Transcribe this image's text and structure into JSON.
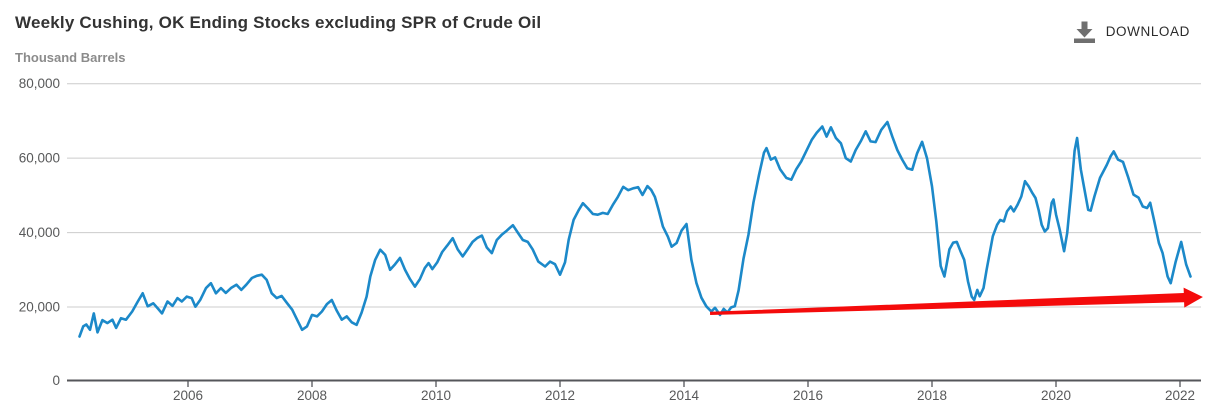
{
  "header": {
    "title": "Weekly Cushing, OK Ending Stocks excluding SPR of Crude Oil",
    "download_label": "DOWNLOAD"
  },
  "colors": {
    "series_line": "#1c89c9",
    "annotation_arrow": "#f40b0b",
    "gridline": "#cccccc",
    "axis_line": "#55565a",
    "axis_text": "#58595a",
    "title_text": "#333333",
    "units_text": "#8b8b8b",
    "download_icon": "#6f6f6f"
  },
  "chart_data": {
    "type": "line",
    "title": "Weekly Cushing, OK Ending Stocks excluding SPR of Crude Oil",
    "xlabel": "",
    "ylabel": "Thousand Barrels",
    "grid": true,
    "legend": false,
    "x_axis": {
      "min": 2004.05,
      "max": 2022.35,
      "ticks": [
        2006,
        2008,
        2010,
        2012,
        2014,
        2016,
        2018,
        2020,
        2022
      ]
    },
    "y_axis": {
      "min": 0,
      "max": 80000,
      "ticks": [
        0,
        20000,
        40000,
        60000,
        80000
      ],
      "tick_labels": [
        "0",
        "20,000",
        "40,000",
        "60,000",
        "80,000"
      ]
    },
    "annotation_arrow": {
      "from": [
        2014.42,
        18300
      ],
      "to": [
        2022.37,
        22700
      ]
    },
    "series": [
      {
        "name": "Weekly Cushing, OK Ending Stocks excluding SPR of Crude Oil (Thousand Barrels)",
        "points": [
          [
            2004.25,
            12100
          ],
          [
            2004.31,
            14800
          ],
          [
            2004.36,
            15300
          ],
          [
            2004.42,
            13900
          ],
          [
            2004.48,
            18300
          ],
          [
            2004.54,
            13200
          ],
          [
            2004.62,
            16500
          ],
          [
            2004.7,
            15700
          ],
          [
            2004.78,
            16600
          ],
          [
            2004.84,
            14400
          ],
          [
            2004.92,
            17000
          ],
          [
            2005.0,
            16600
          ],
          [
            2005.1,
            18800
          ],
          [
            2005.19,
            21500
          ],
          [
            2005.27,
            23700
          ],
          [
            2005.35,
            20200
          ],
          [
            2005.44,
            21000
          ],
          [
            2005.52,
            19500
          ],
          [
            2005.58,
            18300
          ],
          [
            2005.67,
            21500
          ],
          [
            2005.75,
            20300
          ],
          [
            2005.83,
            22400
          ],
          [
            2005.9,
            21500
          ],
          [
            2005.98,
            22800
          ],
          [
            2006.06,
            22400
          ],
          [
            2006.12,
            20100
          ],
          [
            2006.2,
            22000
          ],
          [
            2006.29,
            25100
          ],
          [
            2006.37,
            26400
          ],
          [
            2006.45,
            23700
          ],
          [
            2006.53,
            25100
          ],
          [
            2006.61,
            23800
          ],
          [
            2006.7,
            25200
          ],
          [
            2006.78,
            26000
          ],
          [
            2006.86,
            24600
          ],
          [
            2006.94,
            26000
          ],
          [
            2007.03,
            27800
          ],
          [
            2007.11,
            28400
          ],
          [
            2007.19,
            28700
          ],
          [
            2007.27,
            27300
          ],
          [
            2007.35,
            23700
          ],
          [
            2007.43,
            22400
          ],
          [
            2007.51,
            23000
          ],
          [
            2007.6,
            21000
          ],
          [
            2007.68,
            19300
          ],
          [
            2007.76,
            16600
          ],
          [
            2007.84,
            13900
          ],
          [
            2007.92,
            14800
          ],
          [
            2008.0,
            17900
          ],
          [
            2008.08,
            17500
          ],
          [
            2008.16,
            18800
          ],
          [
            2008.24,
            20800
          ],
          [
            2008.32,
            21900
          ],
          [
            2008.4,
            19000
          ],
          [
            2008.48,
            16600
          ],
          [
            2008.56,
            17500
          ],
          [
            2008.64,
            15900
          ],
          [
            2008.72,
            15200
          ],
          [
            2008.8,
            18500
          ],
          [
            2008.88,
            22800
          ],
          [
            2008.94,
            28200
          ],
          [
            2009.02,
            32700
          ],
          [
            2009.1,
            35400
          ],
          [
            2009.18,
            34000
          ],
          [
            2009.26,
            30000
          ],
          [
            2009.34,
            31500
          ],
          [
            2009.42,
            33200
          ],
          [
            2009.5,
            30000
          ],
          [
            2009.58,
            27500
          ],
          [
            2009.66,
            25500
          ],
          [
            2009.74,
            27500
          ],
          [
            2009.82,
            30500
          ],
          [
            2009.88,
            31800
          ],
          [
            2009.94,
            30200
          ],
          [
            2010.02,
            32000
          ],
          [
            2010.1,
            34800
          ],
          [
            2010.18,
            36500
          ],
          [
            2010.27,
            38500
          ],
          [
            2010.35,
            35500
          ],
          [
            2010.43,
            33600
          ],
          [
            2010.51,
            35500
          ],
          [
            2010.59,
            37500
          ],
          [
            2010.67,
            38600
          ],
          [
            2010.74,
            39200
          ],
          [
            2010.82,
            36000
          ],
          [
            2010.9,
            34500
          ],
          [
            2010.98,
            38000
          ],
          [
            2011.06,
            39400
          ],
          [
            2011.14,
            40500
          ],
          [
            2011.24,
            42000
          ],
          [
            2011.32,
            40000
          ],
          [
            2011.4,
            38000
          ],
          [
            2011.48,
            37500
          ],
          [
            2011.56,
            35500
          ],
          [
            2011.65,
            32200
          ],
          [
            2011.76,
            30900
          ],
          [
            2011.84,
            32200
          ],
          [
            2011.92,
            31500
          ],
          [
            2012.0,
            28700
          ],
          [
            2012.08,
            32000
          ],
          [
            2012.14,
            38100
          ],
          [
            2012.22,
            43400
          ],
          [
            2012.3,
            46000
          ],
          [
            2012.37,
            47900
          ],
          [
            2012.45,
            46500
          ],
          [
            2012.53,
            45000
          ],
          [
            2012.61,
            44800
          ],
          [
            2012.69,
            45300
          ],
          [
            2012.77,
            45000
          ],
          [
            2012.85,
            47400
          ],
          [
            2012.93,
            49500
          ],
          [
            2013.02,
            52300
          ],
          [
            2013.1,
            51400
          ],
          [
            2013.18,
            51900
          ],
          [
            2013.26,
            52200
          ],
          [
            2013.33,
            50100
          ],
          [
            2013.41,
            52500
          ],
          [
            2013.47,
            51500
          ],
          [
            2013.53,
            49600
          ],
          [
            2013.59,
            46100
          ],
          [
            2013.66,
            41600
          ],
          [
            2013.74,
            38900
          ],
          [
            2013.8,
            36200
          ],
          [
            2013.88,
            37200
          ],
          [
            2013.96,
            40500
          ],
          [
            2014.04,
            42300
          ],
          [
            2014.12,
            32700
          ],
          [
            2014.2,
            26500
          ],
          [
            2014.28,
            22500
          ],
          [
            2014.36,
            20200
          ],
          [
            2014.44,
            18800
          ],
          [
            2014.5,
            19800
          ],
          [
            2014.58,
            17900
          ],
          [
            2014.64,
            19500
          ],
          [
            2014.7,
            18500
          ],
          [
            2014.76,
            19900
          ],
          [
            2014.82,
            20200
          ],
          [
            2014.88,
            24500
          ],
          [
            2014.96,
            33000
          ],
          [
            2015.04,
            39500
          ],
          [
            2015.12,
            48000
          ],
          [
            2015.21,
            55500
          ],
          [
            2015.29,
            61500
          ],
          [
            2015.33,
            62700
          ],
          [
            2015.4,
            59600
          ],
          [
            2015.47,
            60200
          ],
          [
            2015.55,
            57000
          ],
          [
            2015.65,
            54700
          ],
          [
            2015.73,
            54200
          ],
          [
            2015.81,
            57000
          ],
          [
            2015.89,
            59100
          ],
          [
            2015.97,
            61800
          ],
          [
            2016.06,
            64900
          ],
          [
            2016.14,
            66800
          ],
          [
            2016.23,
            68500
          ],
          [
            2016.3,
            65800
          ],
          [
            2016.37,
            68300
          ],
          [
            2016.45,
            65400
          ],
          [
            2016.53,
            64000
          ],
          [
            2016.61,
            60000
          ],
          [
            2016.69,
            59100
          ],
          [
            2016.77,
            62200
          ],
          [
            2016.85,
            64500
          ],
          [
            2016.93,
            67200
          ],
          [
            2017.01,
            64500
          ],
          [
            2017.09,
            64300
          ],
          [
            2017.18,
            67600
          ],
          [
            2017.28,
            69700
          ],
          [
            2017.36,
            65800
          ],
          [
            2017.44,
            62200
          ],
          [
            2017.52,
            59600
          ],
          [
            2017.6,
            57300
          ],
          [
            2017.68,
            56900
          ],
          [
            2017.76,
            61300
          ],
          [
            2017.84,
            64400
          ],
          [
            2017.92,
            60000
          ],
          [
            2018.0,
            52400
          ],
          [
            2018.07,
            43000
          ],
          [
            2018.14,
            31000
          ],
          [
            2018.2,
            28200
          ],
          [
            2018.28,
            35500
          ],
          [
            2018.34,
            37300
          ],
          [
            2018.4,
            37500
          ],
          [
            2018.46,
            35000
          ],
          [
            2018.52,
            32700
          ],
          [
            2018.58,
            26900
          ],
          [
            2018.64,
            22800
          ],
          [
            2018.68,
            21900
          ],
          [
            2018.73,
            24600
          ],
          [
            2018.77,
            22900
          ],
          [
            2018.83,
            25100
          ],
          [
            2018.88,
            30000
          ],
          [
            2018.93,
            34500
          ],
          [
            2018.98,
            39000
          ],
          [
            2019.05,
            42100
          ],
          [
            2019.1,
            43400
          ],
          [
            2019.16,
            43000
          ],
          [
            2019.21,
            45700
          ],
          [
            2019.27,
            47000
          ],
          [
            2019.32,
            45700
          ],
          [
            2019.38,
            47500
          ],
          [
            2019.44,
            49700
          ],
          [
            2019.5,
            53800
          ],
          [
            2019.56,
            52400
          ],
          [
            2019.62,
            50600
          ],
          [
            2019.67,
            49300
          ],
          [
            2019.72,
            46100
          ],
          [
            2019.77,
            42100
          ],
          [
            2019.82,
            40300
          ],
          [
            2019.87,
            41200
          ],
          [
            2019.93,
            48000
          ],
          [
            2019.96,
            48900
          ],
          [
            2020.0,
            44900
          ],
          [
            2020.06,
            40800
          ],
          [
            2020.13,
            35000
          ],
          [
            2020.18,
            39900
          ],
          [
            2020.25,
            52000
          ],
          [
            2020.3,
            62000
          ],
          [
            2020.34,
            65400
          ],
          [
            2020.4,
            57000
          ],
          [
            2020.44,
            53300
          ],
          [
            2020.52,
            46100
          ],
          [
            2020.56,
            45900
          ],
          [
            2020.62,
            49700
          ],
          [
            2020.71,
            54700
          ],
          [
            2020.82,
            58200
          ],
          [
            2020.88,
            60500
          ],
          [
            2020.93,
            61800
          ],
          [
            2021.0,
            59600
          ],
          [
            2021.08,
            59000
          ],
          [
            2021.16,
            55100
          ],
          [
            2021.25,
            50200
          ],
          [
            2021.33,
            49400
          ],
          [
            2021.4,
            47000
          ],
          [
            2021.47,
            46600
          ],
          [
            2021.52,
            48000
          ],
          [
            2021.58,
            43400
          ],
          [
            2021.66,
            37200
          ],
          [
            2021.72,
            34500
          ],
          [
            2021.8,
            28200
          ],
          [
            2021.85,
            26400
          ],
          [
            2021.93,
            32200
          ],
          [
            2022.02,
            37500
          ],
          [
            2022.1,
            31400
          ],
          [
            2022.17,
            28200
          ]
        ]
      }
    ]
  }
}
